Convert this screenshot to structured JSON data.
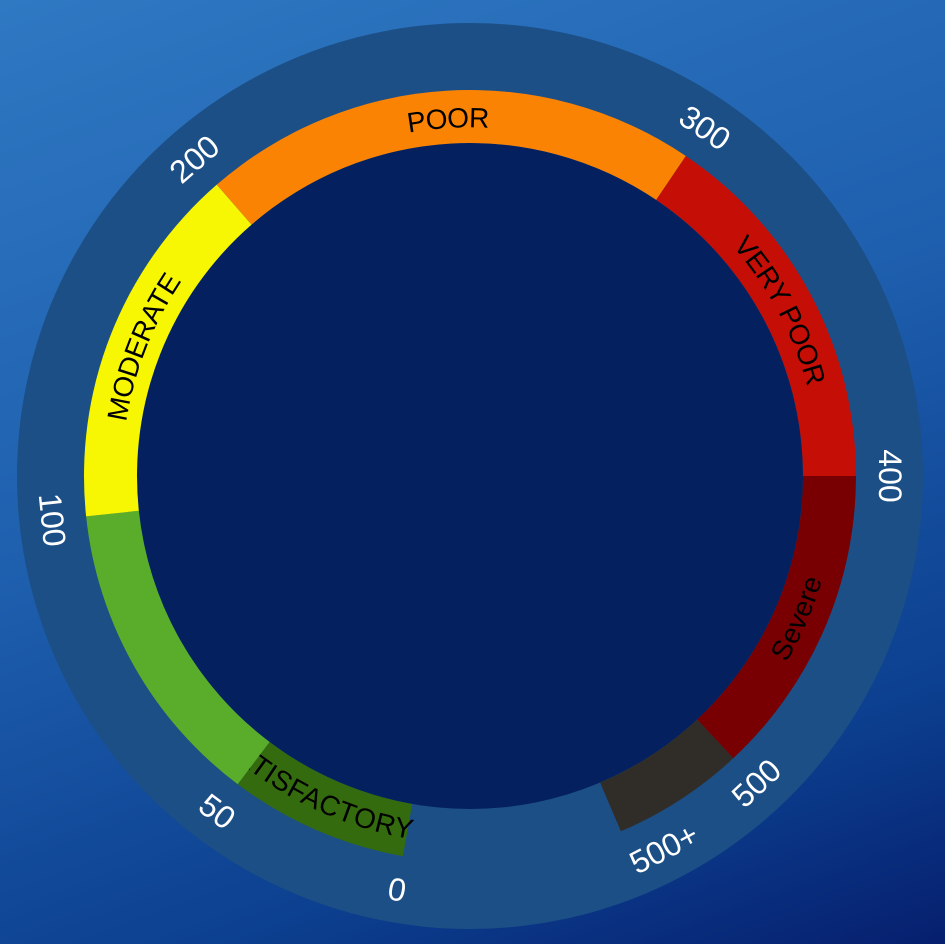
{
  "chart_data": {
    "type": "gauge",
    "title": "",
    "range": [
      0,
      500
    ],
    "overflow_label": "500+",
    "bands": [
      {
        "label": "GOOD + SATISFACTORY",
        "from": 0,
        "to": 50,
        "color": "#336b0e"
      },
      {
        "label": "",
        "from": 50,
        "to": 100,
        "color": "#5aad2a"
      },
      {
        "label": "MODERATE",
        "from": 100,
        "to": 200,
        "color": "#f7f704"
      },
      {
        "label": "POOR",
        "from": 200,
        "to": 300,
        "color": "#fa8304"
      },
      {
        "label": "VERY POOR",
        "from": 300,
        "to": 400,
        "color": "#c50e05"
      },
      {
        "label": "Severe",
        "from": 400,
        "to": 500,
        "color": "#780002"
      },
      {
        "label": "",
        "from": 500,
        "to": 540,
        "color": "#302d28"
      }
    ],
    "ticks": [
      "0",
      "50",
      "100",
      "200",
      "300",
      "400",
      "500",
      "500+"
    ],
    "colors": {
      "outer_ring": "#1c4f86",
      "inner_disc": "#04205f"
    }
  }
}
